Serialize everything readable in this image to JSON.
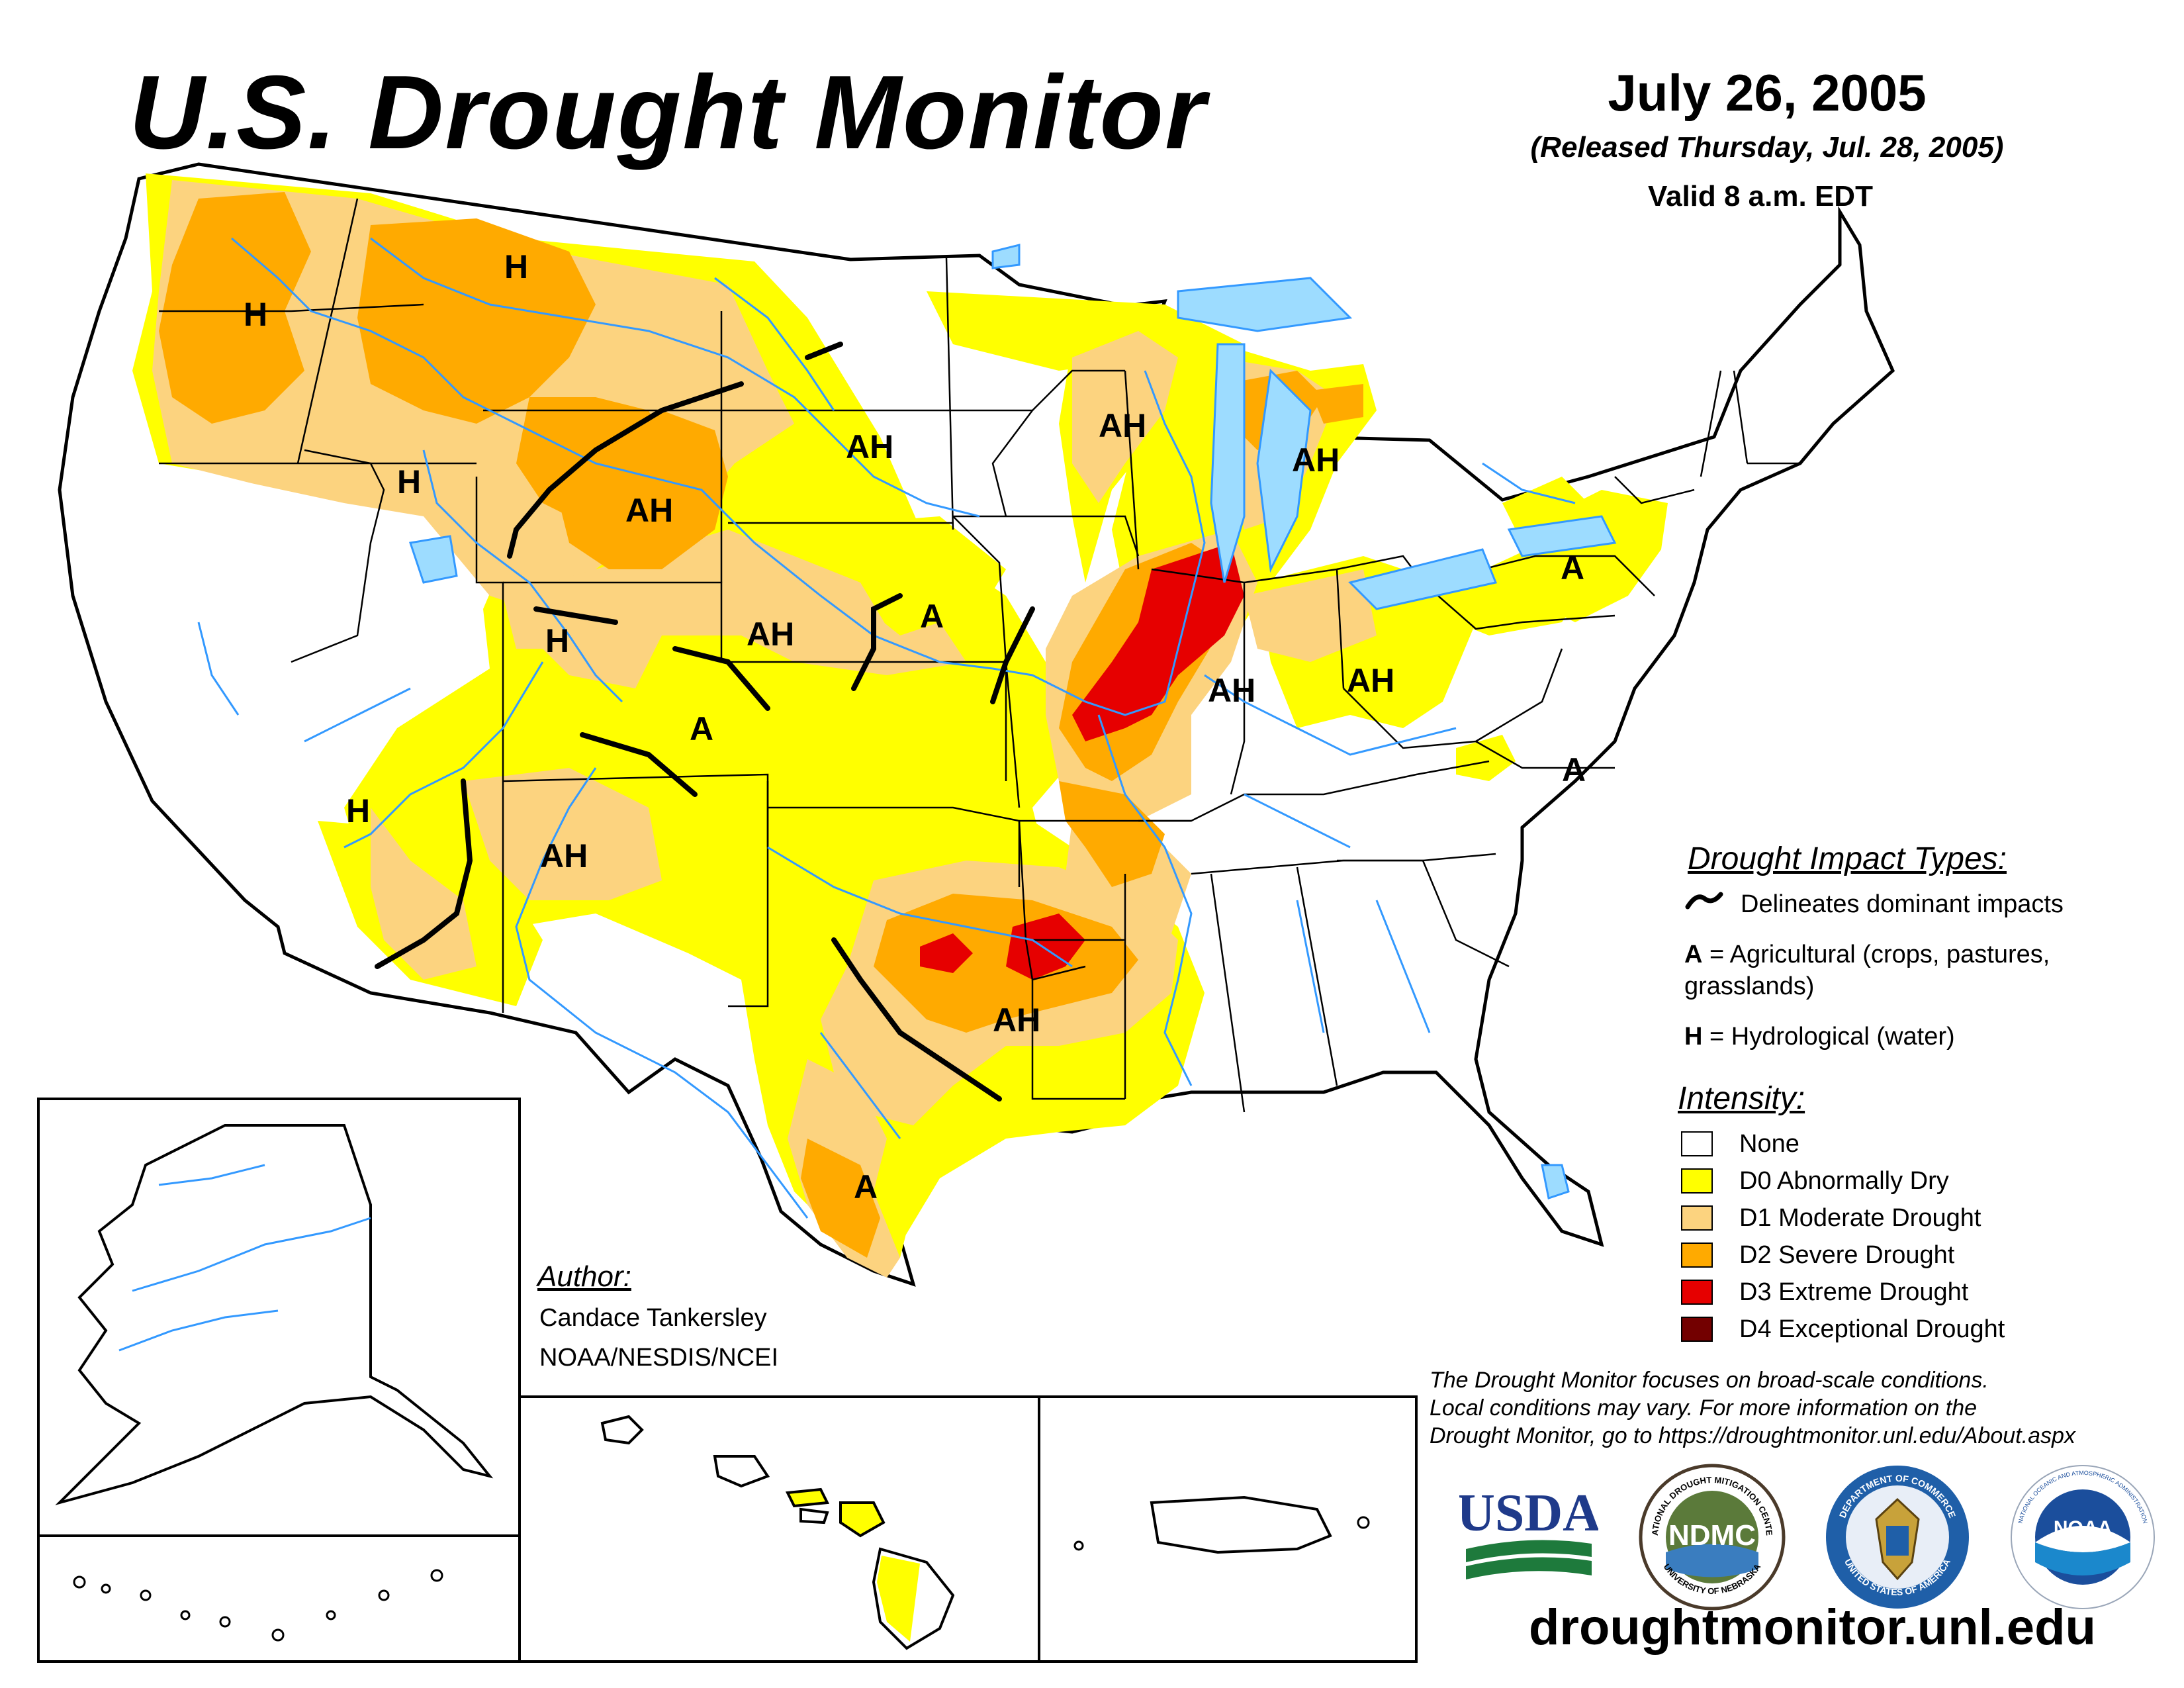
{
  "header": {
    "title": "U.S. Drought Monitor",
    "date": "July 26, 2005",
    "released": "(Released Thursday, Jul. 28, 2005)",
    "valid": "Valid 8 a.m. EDT"
  },
  "colors": {
    "none": "#ffffff",
    "d0": "#ffff00",
    "d1": "#fcd37f",
    "d2": "#ffaa00",
    "d3": "#e60000",
    "d4": "#730000",
    "rivers": "#3399ff"
  },
  "impact_legend": {
    "heading": "Drought Impact Types:",
    "line_label": "Delineates dominant impacts",
    "a_key": "A",
    "a_label": "= Agricultural (crops, pastures,",
    "a_label2": "grasslands)",
    "h_key": "H",
    "h_label": "= Hydrological (water)"
  },
  "intensity_legend": {
    "heading": "Intensity:",
    "items": [
      {
        "label": "None",
        "color": "#ffffff"
      },
      {
        "label": "D0 Abnormally Dry",
        "color": "#ffff00"
      },
      {
        "label": "D1 Moderate Drought",
        "color": "#fcd37f"
      },
      {
        "label": "D2 Severe Drought",
        "color": "#ffaa00"
      },
      {
        "label": "D3 Extreme Drought",
        "color": "#e60000"
      },
      {
        "label": "D4 Exceptional Drought",
        "color": "#730000"
      }
    ]
  },
  "author": {
    "heading": "Author:",
    "name": "Candace Tankersley",
    "org": "NOAA/NESDIS/NCEI"
  },
  "note": {
    "line1": "The Drought Monitor focuses on broad-scale conditions.",
    "line2": "Local conditions may vary. For more information on the",
    "line3": "Drought Monitor, go to https://droughtmonitor.unl.edu/About.aspx"
  },
  "logos": {
    "usda": "USDA",
    "ndmc": "NDMC",
    "ndmc_ring_top": "NATIONAL DROUGHT MITIGATION CENTER",
    "ndmc_ring_bottom": "UNIVERSITY OF NEBRASKA",
    "commerce_ring_top": "DEPARTMENT OF COMMERCE",
    "commerce_ring_bottom": "UNITED STATES OF AMERICA",
    "noaa": "NOAA",
    "noaa_ring": "NATIONAL OCEANIC AND ATMOSPHERIC ADMINISTRATION"
  },
  "website": "droughtmonitor.unl.edu",
  "map_labels": {
    "wa": "H",
    "mt": "H",
    "id_or": "H",
    "dakotas": "AH",
    "wy": "AH",
    "ne": "A",
    "co_nw": "H",
    "ne_sw": "AH",
    "co": "A",
    "ut_az": "H",
    "nm": "AH",
    "wi": "AH",
    "mi": "AH",
    "il": "AH",
    "oh": "AH",
    "pa": "A",
    "nc": "A",
    "ok_tx": "AH",
    "tx_s": "A"
  }
}
